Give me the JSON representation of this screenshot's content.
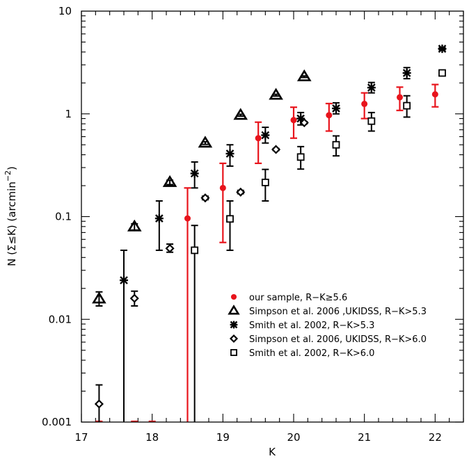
{
  "chart_data": {
    "type": "scatter",
    "title": "",
    "xlabel": "K",
    "ylabel_parts": {
      "prefix": "N (Σ≤K)  (arcmin",
      "exponent": "−2",
      "suffix": ")"
    },
    "xlim": [
      17,
      22.4
    ],
    "ylim": [
      0.001,
      10
    ],
    "yscale": "log",
    "x_ticks": [
      17,
      18,
      19,
      20,
      21,
      22
    ],
    "x_tick_labels": [
      "17",
      "18",
      "19",
      "20",
      "21",
      "22"
    ],
    "y_ticks": [
      0.001,
      0.01,
      0.1,
      1,
      10
    ],
    "y_tick_labels": [
      "0.001",
      "0.01",
      "0.1",
      "1",
      "10"
    ],
    "legend_position": "lower-right",
    "series": [
      {
        "name": "our sample, R−K≥5.6",
        "marker": "filled-circle",
        "color": "#e8141c",
        "points": [
          {
            "x": 17.25,
            "y": 0.001,
            "lo": 0.001,
            "hi": 0.001,
            "marker_hidden": true
          },
          {
            "x": 17.75,
            "y": 0.001,
            "lo": 0.001,
            "hi": 0.001,
            "marker_hidden": true
          },
          {
            "x": 18.0,
            "y": 0.001,
            "lo": 0.001,
            "hi": 0.001,
            "marker_hidden": true
          },
          {
            "x": 18.5,
            "y": 0.096,
            "lo": 0.001,
            "hi": 0.19
          },
          {
            "x": 19.0,
            "y": 0.19,
            "lo": 0.056,
            "hi": 0.33
          },
          {
            "x": 19.5,
            "y": 0.58,
            "lo": 0.33,
            "hi": 0.83
          },
          {
            "x": 20.0,
            "y": 0.87,
            "lo": 0.58,
            "hi": 1.16
          },
          {
            "x": 20.5,
            "y": 0.97,
            "lo": 0.68,
            "hi": 1.26
          },
          {
            "x": 21.0,
            "y": 1.25,
            "lo": 0.9,
            "hi": 1.6
          },
          {
            "x": 21.5,
            "y": 1.45,
            "lo": 1.08,
            "hi": 1.82
          },
          {
            "x": 22.0,
            "y": 1.55,
            "lo": 1.17,
            "hi": 1.93
          }
        ]
      },
      {
        "name": "Simpson et al. 2006 ,UKIDSS, R−K>5.3",
        "marker": "open-triangle",
        "color": "#000000",
        "points": [
          {
            "x": 17.25,
            "y": 0.0158,
            "lo": 0.0135,
            "hi": 0.0185
          },
          {
            "x": 17.75,
            "y": 0.0795,
            "lo": 0.074,
            "hi": 0.085
          },
          {
            "x": 18.25,
            "y": 0.215,
            "lo": 0.205,
            "hi": 0.226
          },
          {
            "x": 18.75,
            "y": 0.52,
            "lo": 0.505,
            "hi": 0.535
          },
          {
            "x": 19.25,
            "y": 0.97,
            "lo": 0.95,
            "hi": 0.99
          },
          {
            "x": 19.75,
            "y": 1.52,
            "lo": 1.49,
            "hi": 1.55
          },
          {
            "x": 20.15,
            "y": 2.3,
            "lo": 2.26,
            "hi": 2.34
          }
        ]
      },
      {
        "name": "Smith et al. 2002, R−K>5.3",
        "marker": "asterisk",
        "color": "#000000",
        "points": [
          {
            "x": 17.6,
            "y": 0.024,
            "lo": 0.001,
            "hi": 0.047
          },
          {
            "x": 18.1,
            "y": 0.096,
            "lo": 0.047,
            "hi": 0.142
          },
          {
            "x": 18.6,
            "y": 0.263,
            "lo": 0.19,
            "hi": 0.34
          },
          {
            "x": 19.1,
            "y": 0.41,
            "lo": 0.31,
            "hi": 0.5
          },
          {
            "x": 19.6,
            "y": 0.62,
            "lo": 0.52,
            "hi": 0.74
          },
          {
            "x": 20.1,
            "y": 0.9,
            "lo": 0.78,
            "hi": 1.03
          },
          {
            "x": 20.6,
            "y": 1.13,
            "lo": 1.0,
            "hi": 1.28
          },
          {
            "x": 21.1,
            "y": 1.8,
            "lo": 1.6,
            "hi": 2.02
          },
          {
            "x": 21.6,
            "y": 2.5,
            "lo": 2.2,
            "hi": 2.82
          },
          {
            "x": 22.1,
            "y": 4.3,
            "lo": 4.2,
            "hi": 4.4
          }
        ]
      },
      {
        "name": "Simpson et al. 2006, UKIDSS, R−K>6.0",
        "marker": "open-diamond",
        "color": "#000000",
        "points": [
          {
            "x": 17.25,
            "y": 0.0015,
            "lo": 0.001,
            "hi": 0.0023
          },
          {
            "x": 17.75,
            "y": 0.016,
            "lo": 0.0135,
            "hi": 0.0188
          },
          {
            "x": 18.25,
            "y": 0.049,
            "lo": 0.045,
            "hi": 0.054
          },
          {
            "x": 18.75,
            "y": 0.152,
            "lo": 0.146,
            "hi": 0.158
          },
          {
            "x": 19.25,
            "y": 0.173,
            "lo": 0.167,
            "hi": 0.18
          },
          {
            "x": 19.75,
            "y": 0.45,
            "lo": 0.44,
            "hi": 0.46
          },
          {
            "x": 20.15,
            "y": 0.82,
            "lo": 0.8,
            "hi": 0.84
          }
        ]
      },
      {
        "name": "Smith et al. 2002, R−K>6.0",
        "marker": "open-square",
        "color": "#000000",
        "points": [
          {
            "x": 18.6,
            "y": 0.047,
            "lo": 0.001,
            "hi": 0.082
          },
          {
            "x": 19.1,
            "y": 0.095,
            "lo": 0.047,
            "hi": 0.142
          },
          {
            "x": 19.6,
            "y": 0.215,
            "lo": 0.142,
            "hi": 0.288
          },
          {
            "x": 20.1,
            "y": 0.38,
            "lo": 0.29,
            "hi": 0.48
          },
          {
            "x": 20.6,
            "y": 0.5,
            "lo": 0.39,
            "hi": 0.61
          },
          {
            "x": 21.1,
            "y": 0.85,
            "lo": 0.68,
            "hi": 1.03
          },
          {
            "x": 21.6,
            "y": 1.2,
            "lo": 0.93,
            "hi": 1.5
          },
          {
            "x": 22.1,
            "y": 2.5,
            "lo": 2.45,
            "hi": 2.55
          }
        ]
      }
    ]
  }
}
